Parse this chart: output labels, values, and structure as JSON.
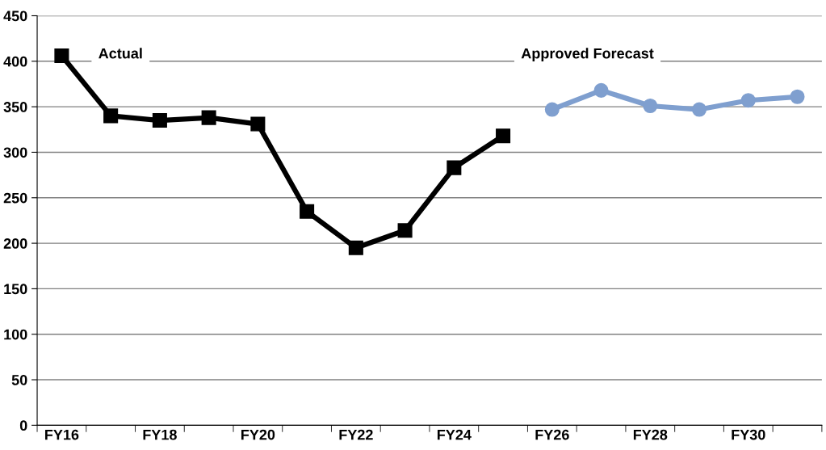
{
  "chart_data": {
    "type": "line",
    "categories": [
      "FY16",
      null,
      "FY18",
      null,
      "FY20",
      null,
      "FY22",
      null,
      "FY24",
      null,
      "FY26",
      null,
      "FY28",
      null,
      "FY30",
      null
    ],
    "series": [
      {
        "name": "Actual",
        "color": "#000000",
        "marker": "square",
        "values": [
          406,
          340,
          335,
          338,
          331,
          235,
          195,
          214,
          283,
          318,
          null,
          null,
          null,
          null,
          null,
          null
        ]
      },
      {
        "name": "Approved Forecast",
        "color": "#7f9fcf",
        "marker": "circle",
        "values": [
          null,
          null,
          null,
          null,
          null,
          null,
          null,
          null,
          null,
          null,
          347,
          368,
          351,
          347,
          357,
          361
        ]
      }
    ],
    "ylim": [
      0,
      450
    ],
    "yticks": [
      0,
      50,
      100,
      150,
      200,
      250,
      300,
      350,
      400,
      450
    ],
    "grid": "y",
    "legend": false,
    "line_style": "solid"
  }
}
